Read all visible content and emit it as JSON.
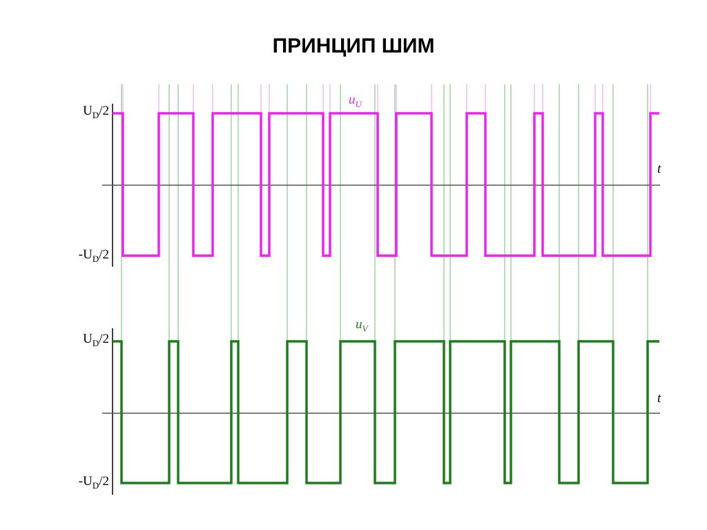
{
  "title": "ПРИНЦИП ШИМ",
  "panels": [
    {
      "high_label": {
        "main": "U",
        "sub": "D",
        "rest": "/2"
      },
      "low_label": {
        "main": "-U",
        "sub": "D",
        "rest": "/2"
      },
      "signal_label": {
        "main": "u",
        "sub": "U"
      },
      "axis_label": "t"
    },
    {
      "high_label": {
        "main": "U",
        "sub": "D",
        "rest": "/2"
      },
      "low_label": {
        "main": "-U",
        "sub": "D",
        "rest": "/2"
      },
      "signal_label": {
        "main": "u",
        "sub": "V"
      },
      "axis_label": "t"
    }
  ]
}
